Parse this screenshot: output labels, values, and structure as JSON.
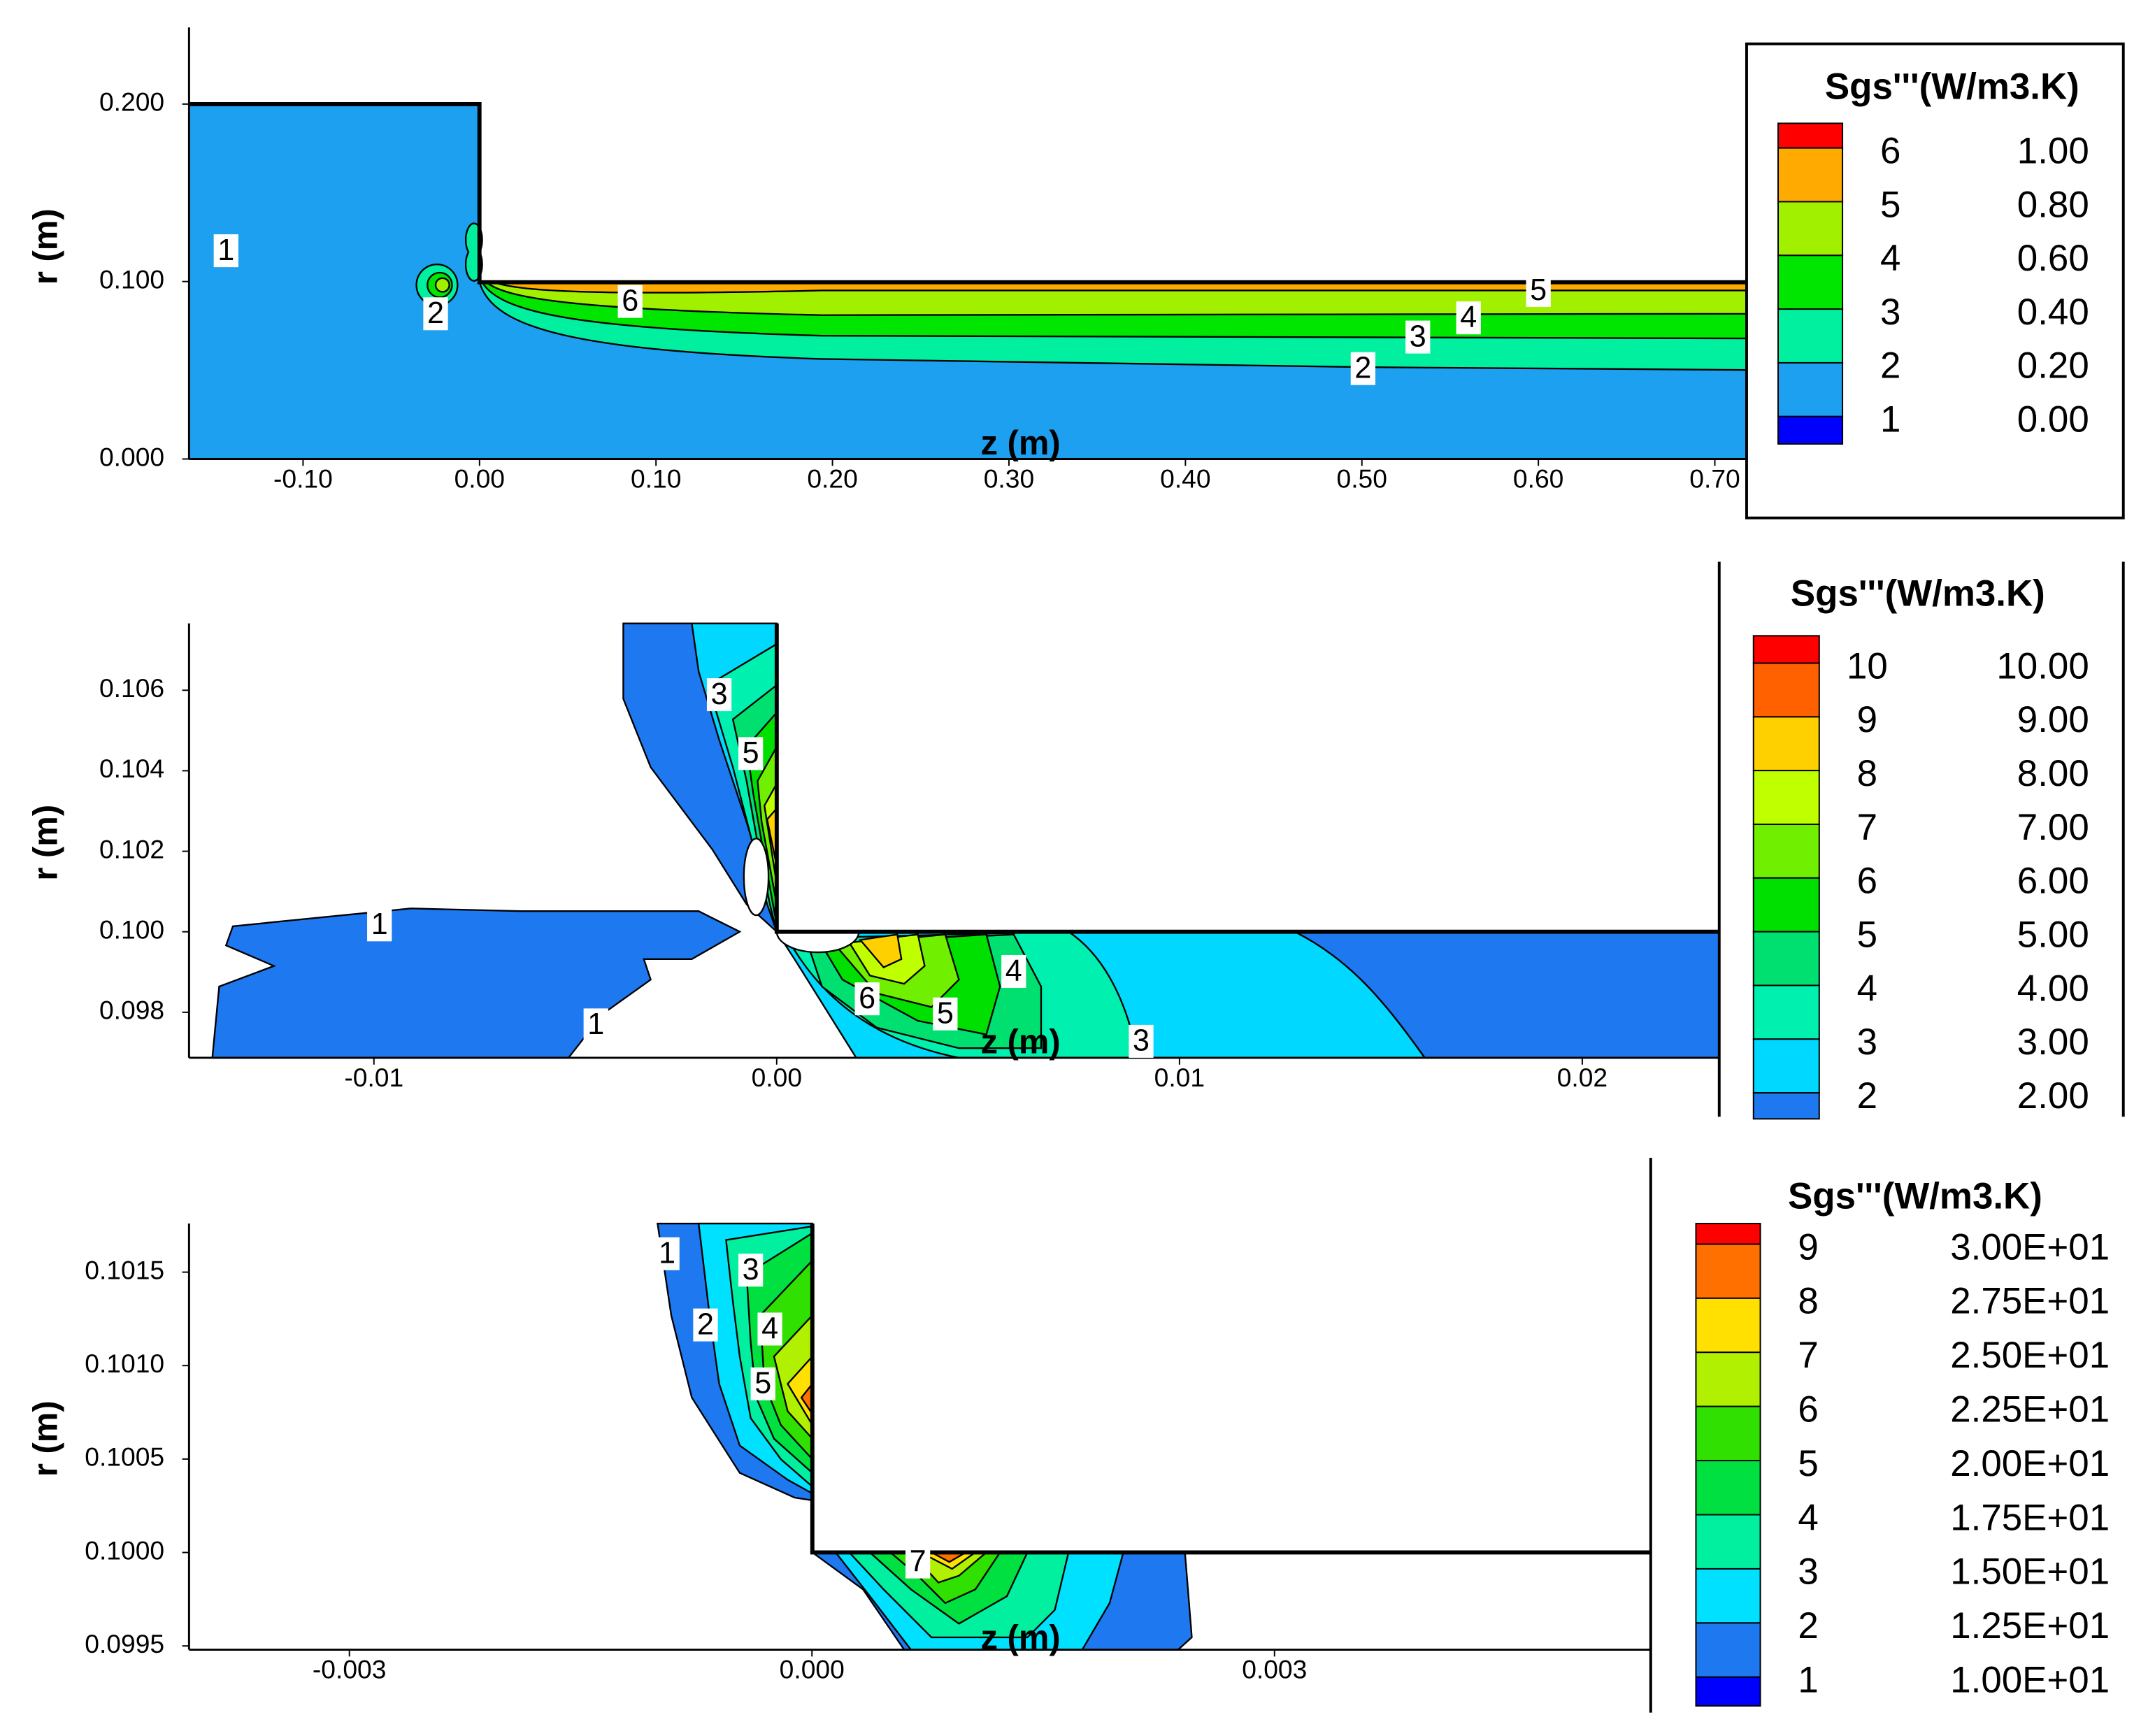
{
  "chart_data": [
    {
      "type": "contour",
      "legend_title": "Sgs'''(W/m3.K)",
      "xlabel": "z (m)",
      "ylabel": "r (m)",
      "xlim": [
        -0.1646,
        0.718
      ],
      "ylim": [
        0,
        0.2432
      ],
      "xticks": [
        {
          "value": -0.1,
          "label": "-0.10"
        },
        {
          "value": 0,
          "label": "0.00"
        },
        {
          "value": 0.1,
          "label": "0.10"
        },
        {
          "value": 0.2,
          "label": "0.20"
        },
        {
          "value": 0.3,
          "label": "0.30"
        },
        {
          "value": 0.4,
          "label": "0.40"
        },
        {
          "value": 0.5,
          "label": "0.50"
        },
        {
          "value": 0.6,
          "label": "0.60"
        },
        {
          "value": 0.7,
          "label": "0.70"
        }
      ],
      "yticks": [
        {
          "value": 0,
          "label": "0.000"
        },
        {
          "value": 0.1,
          "label": "0.100"
        },
        {
          "value": 0.2,
          "label": "0.200"
        }
      ],
      "levels": [
        {
          "index": 6,
          "value": 1,
          "label": "1.00"
        },
        {
          "index": 5,
          "value": 0.8,
          "label": "0.80"
        },
        {
          "index": 4,
          "value": 0.6,
          "label": "0.60"
        },
        {
          "index": 3,
          "value": 0.4,
          "label": "0.40"
        },
        {
          "index": 2,
          "value": 0.2,
          "label": "0.20"
        },
        {
          "index": 1,
          "value": 0,
          "label": "0.00"
        }
      ],
      "colors": [
        "#ff0000",
        "#ffaa00",
        "#a0f000",
        "#00e600",
        "#00f0a0",
        "#1ea0f0",
        "#0000ff"
      ],
      "contour_labels": [
        1,
        2,
        6,
        5,
        4,
        3,
        2
      ]
    },
    {
      "type": "contour",
      "legend_title": "Sgs'''(W/m3.K)",
      "xlabel": "z (m)",
      "ylabel": "r (m)",
      "xlim": [
        -0.01459,
        0.0234
      ],
      "ylim": [
        0.09687,
        0.10766
      ],
      "xticks": [
        -0.01,
        {
          "value": 0,
          "label": "0.00"
        },
        0.01,
        0.02
      ],
      "yticks": [
        0.098,
        {
          "value": 0.1,
          "label": "0.100"
        },
        0.102,
        0.104,
        0.106
      ],
      "levels": [
        {
          "index": 10,
          "value": 10,
          "label": "10.00"
        },
        {
          "index": 9,
          "value": 9,
          "label": "9.00"
        },
        {
          "index": 8,
          "value": 8,
          "label": "8.00"
        },
        {
          "index": 7,
          "value": 7,
          "label": "7.00"
        },
        {
          "index": 6,
          "value": 6,
          "label": "6.00"
        },
        {
          "index": 5,
          "value": 5,
          "label": "5.00"
        },
        {
          "index": 4,
          "value": 4,
          "label": "4.00"
        },
        {
          "index": 3,
          "value": 3,
          "label": "3.00"
        },
        {
          "index": 2,
          "value": 2,
          "label": "2.00"
        }
      ],
      "colors": [
        "#ff0000",
        "#ff6000",
        "#ffd000",
        "#c0ff00",
        "#70f000",
        "#00e000",
        "#00e070",
        "#00f0b0",
        "#00d8ff",
        "#1e78f0"
      ],
      "contour_labels": [
        3,
        5,
        1,
        1,
        4,
        6,
        5,
        3
      ]
    },
    {
      "type": "contour",
      "legend_title": "Sgs'''(W/m3.K)",
      "xlabel": "z (m)",
      "ylabel": "r (m)",
      "xlim": [
        -0.00404,
        0.00544
      ],
      "ylim": [
        0.09948,
        0.10176
      ],
      "xticks": [
        -0.003,
        {
          "value": 0,
          "label": "0.000"
        },
        0.003
      ],
      "yticks": [
        0.0995,
        {
          "value": 0.1,
          "label": "0.1000"
        },
        0.1005,
        {
          "value": 0.101,
          "label": "0.1010"
        },
        0.1015
      ],
      "levels": [
        {
          "index": 9,
          "value": 30,
          "label": "3.00E+01"
        },
        {
          "index": 8,
          "value": 27.5,
          "label": "2.75E+01"
        },
        {
          "index": 7,
          "value": 25,
          "label": "2.50E+01"
        },
        {
          "index": 6,
          "value": 22.5,
          "label": "2.25E+01"
        },
        {
          "index": 5,
          "value": 20,
          "label": "2.00E+01"
        },
        {
          "index": 4,
          "value": 17.5,
          "label": "1.75E+01"
        },
        {
          "index": 3,
          "value": 15,
          "label": "1.50E+01"
        },
        {
          "index": 2,
          "value": 12.5,
          "label": "1.25E+01"
        },
        {
          "index": 1,
          "value": 10,
          "label": "1.00E+01"
        }
      ],
      "colors": [
        "#ff0000",
        "#ff7000",
        "#ffe000",
        "#b0f000",
        "#30e000",
        "#00e040",
        "#00f0a0",
        "#00e0ff",
        "#1e78f0",
        "#0000ff"
      ],
      "contour_labels": [
        1,
        3,
        2,
        4,
        5,
        7
      ]
    }
  ]
}
